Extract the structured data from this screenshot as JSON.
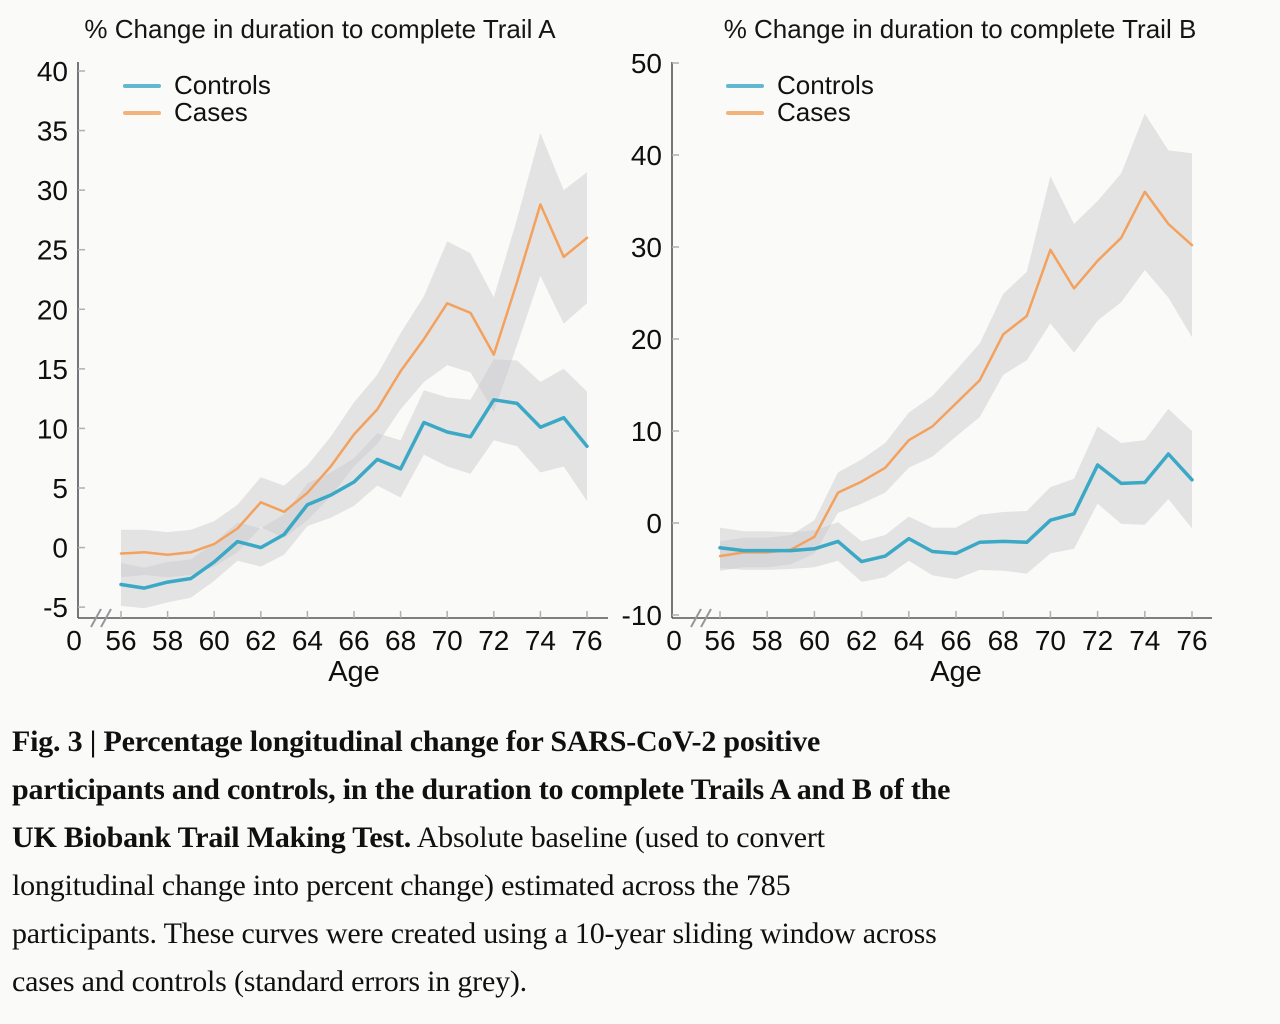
{
  "figure": {
    "caption_lines": [
      {
        "bold": "Fig. 3 | Percentage longitudinal change for SARS-CoV-2 positive",
        "regular": ""
      },
      {
        "bold": "participants and controls, in the duration to complete Trails A and B of the",
        "regular": ""
      },
      {
        "bold": "UK Biobank Trail Making Test.",
        "regular": " Absolute baseline (used to convert"
      },
      {
        "bold": "",
        "regular": "longitudinal change into percent change) estimated across the 785"
      },
      {
        "bold": "",
        "regular": "participants. These curves were created using a 10-year sliding window across"
      },
      {
        "bold": "",
        "regular": "cases and controls (standard errors in grey)."
      }
    ]
  },
  "colors": {
    "controls": "#3BA8C5",
    "cases": "#F4A15D",
    "band": "#C7C7CD",
    "axis": "#55555A",
    "tick": "#B0B0B3",
    "text": "#0F0F0F",
    "background": "#FAFAF8"
  },
  "chart_data": [
    {
      "type": "line",
      "title": "% Change in duration to complete Trail A",
      "xlabel": "Age",
      "origin_label": "0",
      "axis_break": true,
      "grid": false,
      "legend_position": "top-left",
      "x": [
        56,
        57,
        58,
        59,
        60,
        61,
        62,
        63,
        64,
        65,
        66,
        67,
        68,
        69,
        70,
        71,
        72,
        73,
        74,
        75,
        76
      ],
      "x_ticks": [
        56,
        58,
        60,
        62,
        64,
        66,
        68,
        70,
        72,
        74,
        76
      ],
      "ylim": [
        -5,
        40
      ],
      "y_ticks": [
        40,
        35,
        30,
        25,
        20,
        15,
        10,
        5,
        0,
        -5
      ],
      "series": [
        {
          "name": "Controls",
          "values": [
            -3.1,
            -3.4,
            -2.9,
            -2.6,
            -1.2,
            0.5,
            0.0,
            1.1,
            3.6,
            4.4,
            5.5,
            7.4,
            6.6,
            10.5,
            9.7,
            9.3,
            12.4,
            12.1,
            10.1,
            10.9,
            8.5
          ],
          "band_lower": [
            -4.9,
            -5.1,
            -4.6,
            -4.2,
            -2.8,
            -1.1,
            -1.6,
            -0.6,
            1.8,
            2.5,
            3.5,
            5.2,
            4.2,
            7.8,
            6.8,
            6.2,
            9.0,
            8.5,
            6.3,
            6.8,
            3.9
          ],
          "band_upper": [
            -1.3,
            -1.7,
            -1.2,
            -1.0,
            0.4,
            2.1,
            1.6,
            2.8,
            5.4,
            6.3,
            7.5,
            9.6,
            9.0,
            13.2,
            12.6,
            12.4,
            15.8,
            15.7,
            13.9,
            15.0,
            13.1
          ]
        },
        {
          "name": "Cases",
          "values": [
            -0.5,
            -0.4,
            -0.6,
            -0.4,
            0.3,
            1.6,
            3.8,
            3.0,
            4.6,
            6.8,
            9.5,
            11.6,
            14.8,
            17.5,
            20.5,
            19.7,
            16.2,
            22.3,
            28.8,
            24.4,
            26.0
          ],
          "band_lower": [
            -2.5,
            -2.3,
            -2.5,
            -2.3,
            -1.6,
            -0.4,
            1.7,
            0.8,
            2.3,
            4.3,
            6.8,
            8.7,
            11.6,
            13.9,
            15.3,
            14.7,
            11.4,
            17.0,
            22.8,
            18.8,
            20.5
          ],
          "band_upper": [
            1.5,
            1.5,
            1.3,
            1.5,
            2.2,
            3.6,
            5.9,
            5.2,
            6.9,
            9.3,
            12.2,
            14.5,
            18.0,
            21.1,
            25.7,
            24.7,
            21.0,
            27.6,
            34.8,
            30.0,
            31.5
          ]
        }
      ]
    },
    {
      "type": "line",
      "title": "% Change in duration to complete Trail B",
      "xlabel": "Age",
      "origin_label": "0",
      "axis_break": true,
      "grid": false,
      "legend_position": "top-left",
      "x": [
        56,
        57,
        58,
        59,
        60,
        61,
        62,
        63,
        64,
        65,
        66,
        67,
        68,
        69,
        70,
        71,
        72,
        73,
        74,
        75,
        76
      ],
      "x_ticks": [
        56,
        58,
        60,
        62,
        64,
        66,
        68,
        70,
        72,
        74,
        76
      ],
      "ylim": [
        -10,
        50
      ],
      "y_ticks": [
        50,
        40,
        30,
        20,
        10,
        0,
        -10
      ],
      "series": [
        {
          "name": "Controls",
          "values": [
            -2.7,
            -3.0,
            -3.0,
            -3.0,
            -2.8,
            -2.0,
            -4.2,
            -3.6,
            -1.7,
            -3.1,
            -3.3,
            -2.1,
            -2.0,
            -2.1,
            0.3,
            1.0,
            6.3,
            4.3,
            4.4,
            7.5,
            4.7
          ],
          "band_lower": [
            -4.9,
            -5.1,
            -5.1,
            -5.0,
            -4.8,
            -4.1,
            -6.4,
            -5.9,
            -4.1,
            -5.7,
            -6.1,
            -5.1,
            -5.2,
            -5.5,
            -3.3,
            -2.8,
            2.1,
            -0.1,
            -0.2,
            2.6,
            -0.6
          ],
          "band_upper": [
            -0.5,
            -0.9,
            -0.9,
            -1.0,
            -0.8,
            0.1,
            -2.0,
            -1.3,
            0.7,
            -0.5,
            -0.5,
            0.9,
            1.2,
            1.3,
            3.9,
            4.8,
            10.5,
            8.7,
            9.0,
            12.4,
            10.0
          ]
        },
        {
          "name": "Cases",
          "values": [
            -3.6,
            -3.2,
            -3.2,
            -2.9,
            -1.5,
            3.3,
            4.5,
            6.0,
            9.0,
            10.5,
            13.0,
            15.5,
            20.5,
            22.5,
            29.7,
            25.5,
            28.5,
            31.0,
            36.0,
            32.5,
            30.2
          ],
          "band_lower": [
            -5.2,
            -4.8,
            -4.8,
            -4.5,
            -3.3,
            1.1,
            2.1,
            3.3,
            6.0,
            7.2,
            9.4,
            11.5,
            16.1,
            17.7,
            21.7,
            18.5,
            22.0,
            24.0,
            27.5,
            24.5,
            20.2
          ],
          "band_upper": [
            -2.0,
            -1.6,
            -1.6,
            -1.3,
            0.3,
            5.5,
            6.9,
            8.7,
            12.0,
            13.8,
            16.6,
            19.5,
            24.9,
            27.3,
            37.7,
            32.5,
            35.0,
            38.0,
            44.5,
            40.5,
            40.2
          ]
        }
      ]
    }
  ]
}
